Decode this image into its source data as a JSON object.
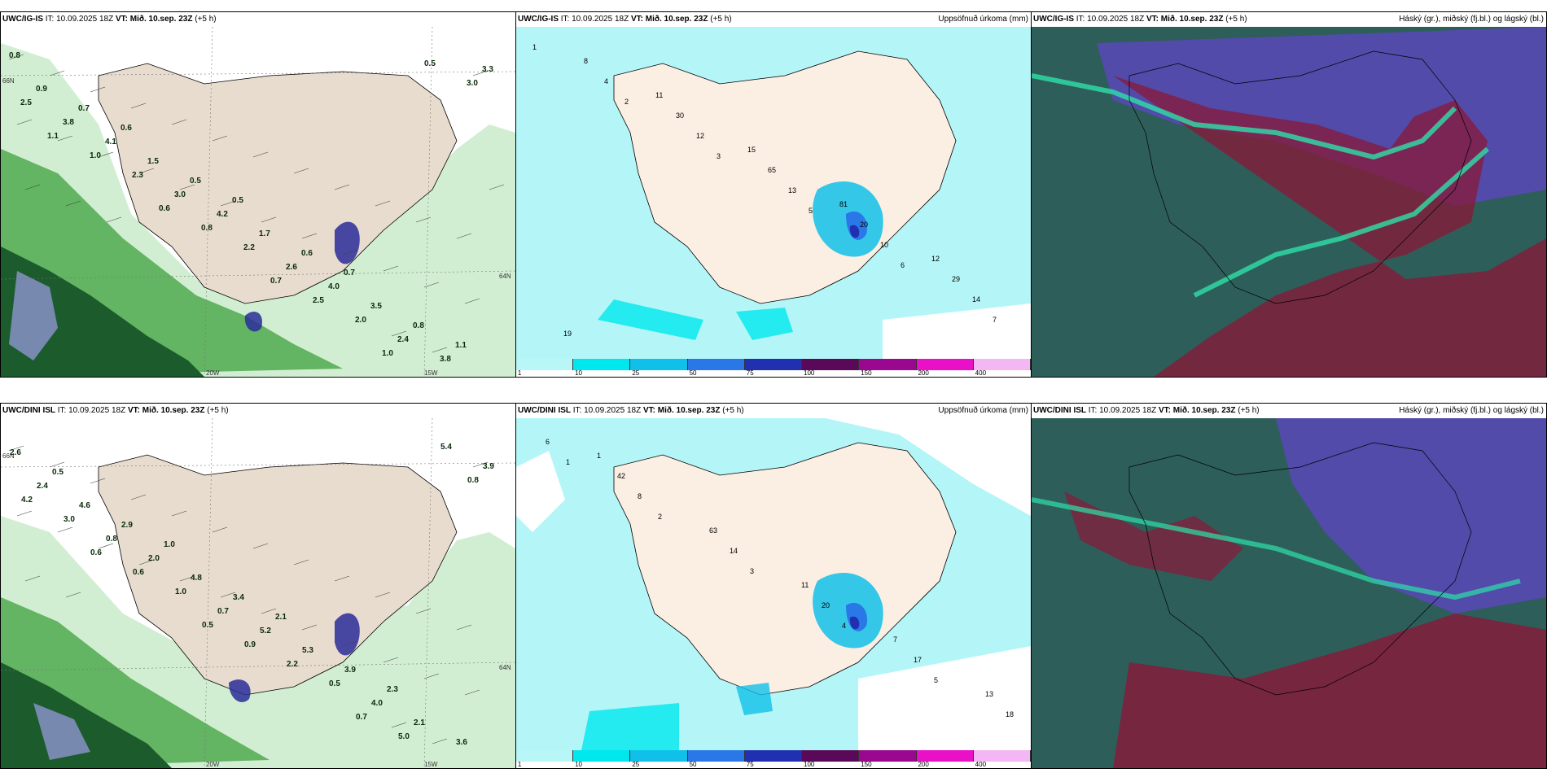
{
  "rows": [
    {
      "model": "UWC/IG-IS",
      "it": "IT: 10.09.2025 18Z",
      "vt": "VT: Mið. 10.sep. 23Z",
      "lead": "(+5 h)",
      "panels": {
        "wind": {
          "labels": [
            "0.8",
            "0.6",
            "0.5",
            "0.7",
            "1.1",
            "0.7",
            "0.5",
            "0.6",
            "0.8",
            "0.9",
            "1.5",
            "1.7",
            "3.5",
            "3.3",
            "4.1",
            "4.2",
            "4.0",
            "3.8",
            "3.8",
            "3.0",
            "2.6",
            "2.4",
            "2.5",
            "2.3",
            "2.2",
            "2.0",
            "3.0",
            "1.0",
            "0.8",
            "2.5",
            "0.5",
            "1.1",
            "0.6",
            "0.7",
            "1.0"
          ],
          "axes": {
            "lon1": "20W",
            "lon2": "15W",
            "lat1": "66N",
            "lat2": "64N"
          }
        },
        "precip": {
          "title": "Uppsöfnuð úrkoma (mm)",
          "labels": [
            "1",
            "2",
            "3",
            "5",
            "6",
            "7",
            "4",
            "12",
            "13",
            "10",
            "14",
            "8",
            "30",
            "65",
            "20",
            "29",
            "19",
            "11",
            "15",
            "81",
            "12"
          ]
        },
        "cloud": {
          "title": "Háský (gr.), miðský (fj.bl.) og lágský (bl.)"
        }
      }
    },
    {
      "model": "UWC/DINI ISL",
      "it": "IT: 10.09.2025 18Z",
      "vt": "VT: Mið. 10.sep. 23Z",
      "lead": "(+5 h)",
      "panels": {
        "wind": {
          "labels": [
            "0.5",
            "1.0",
            "2.1",
            "2.3",
            "2.6",
            "2.9",
            "3.4",
            "3.9",
            "3.6",
            "4.6",
            "4.8",
            "5.3",
            "2.1",
            "2.4",
            "2.0",
            "5.2",
            "4.0",
            "3.9",
            "0.8",
            "0.7",
            "0.5",
            "5.4",
            "3.0",
            "1.0",
            "2.2",
            "5.0",
            "4.2",
            "0.6",
            "0.9",
            "0.7",
            "0.8",
            "0.6",
            "0.5"
          ],
          "axes": {
            "lon1": "20W",
            "lon2": "15W",
            "lat1": "66N",
            "lat2": "64N"
          }
        },
        "precip": {
          "title": "Uppsöfnuð úrkoma (mm)",
          "labels": [
            "1",
            "2",
            "3",
            "4",
            "5",
            "6",
            "8",
            "14",
            "20",
            "17",
            "18",
            "42",
            "63",
            "11",
            "7",
            "13",
            "1"
          ]
        },
        "cloud": {
          "title": "Háský (gr.), miðský (fj.bl.) og lágský (bl.)"
        }
      }
    }
  ],
  "legend": {
    "stops": [
      "1",
      "10",
      "25",
      "50",
      "75",
      "100",
      "150",
      "200",
      "400"
    ],
    "colors": [
      "#b8f6f8",
      "#00e8ee",
      "#10c0e8",
      "#2a78e8",
      "#2030b0",
      "#5a0858",
      "#9a0890",
      "#ea10c8",
      "#f3b8f3"
    ]
  },
  "palette": {
    "land": "#f2e6da",
    "sea_precip": "#b4f6f8",
    "wind_light": "#cdeccd",
    "wind_mid": "#63b463",
    "wind_dark": "#1c5c2c",
    "cloud_low": "#2e5e5a",
    "cloud_mid": "#5848b8",
    "cloud_high": "#8a1838"
  }
}
